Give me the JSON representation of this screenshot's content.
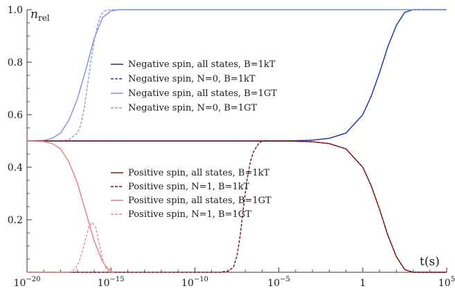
{
  "chart_data": {
    "type": "line",
    "x_scale": "log",
    "xlabel": "t(s)",
    "ylabel_main": "n",
    "ylabel_sub": "rel",
    "xlim": [
      "1e-20",
      "1e5"
    ],
    "ylim": [
      0,
      1.0
    ],
    "x_ticks": [
      {
        "exp": -20,
        "base": "10",
        "power": "−20"
      },
      {
        "exp": -15,
        "base": "10",
        "power": "−15"
      },
      {
        "exp": -10,
        "base": "10",
        "power": "−10"
      },
      {
        "exp": -5,
        "base": "10",
        "power": "−5"
      },
      {
        "exp": 0,
        "base": "1",
        "power": ""
      },
      {
        "exp": 5,
        "base": "10",
        "power": "5"
      }
    ],
    "y_ticks": [
      {
        "value": 0.2,
        "label": "0.2"
      },
      {
        "value": 0.4,
        "label": "0.4"
      },
      {
        "value": 0.6,
        "label": "0.6"
      },
      {
        "value": 0.8,
        "label": "0.8"
      },
      {
        "value": 1.0,
        "label": "1.0"
      }
    ],
    "grid": false,
    "legend_placement": "center (two groups)",
    "x_note": "x values are t(s) exponents on the printed log axis",
    "series": [
      {
        "name": "Negative spin, all states, B=1kT",
        "color": "#1f2f8a",
        "dash": false,
        "x": [
          -20,
          -6,
          -5,
          -4,
          -3,
          -2,
          -1,
          0,
          0.5,
          1,
          1.5,
          2,
          2.5,
          3,
          5
        ],
        "y": [
          0.5,
          0.5,
          0.5,
          0.501,
          0.503,
          0.51,
          0.53,
          0.6,
          0.67,
          0.76,
          0.86,
          0.94,
          0.99,
          1.0,
          1.0
        ]
      },
      {
        "name": "Negative spin, N=0, B=1kT",
        "color": "#2a3fb0",
        "dash": true,
        "x": [
          -20,
          -6,
          -5,
          -4,
          -3,
          -2,
          -1,
          0,
          0.5,
          1,
          1.5,
          2,
          2.5,
          3,
          5
        ],
        "y": [
          0.5,
          0.5,
          0.5,
          0.501,
          0.503,
          0.51,
          0.53,
          0.6,
          0.67,
          0.76,
          0.86,
          0.94,
          0.99,
          1.0,
          1.0
        ]
      },
      {
        "name": "Negative spin, all states, B=1GT",
        "color": "#7b8ee8",
        "dash": false,
        "x": [
          -20,
          -19,
          -18.5,
          -18,
          -17.5,
          -17,
          -16.5,
          -16,
          -15.5,
          -15,
          -14.5,
          5
        ],
        "y": [
          0.5,
          0.502,
          0.51,
          0.53,
          0.58,
          0.66,
          0.77,
          0.89,
          0.97,
          0.995,
          1.0,
          1.0
        ]
      },
      {
        "name": "Negative spin, N=0, B=1GT",
        "color": "#8a9cf0",
        "dash": true,
        "x": [
          -20,
          -18,
          -17.5,
          -17,
          -16.8,
          -16.6,
          -16.4,
          -16.2,
          -16,
          -15.8,
          -15.6,
          -15.4,
          -15,
          5
        ],
        "y": [
          0.5,
          0.5,
          0.505,
          0.53,
          0.56,
          0.62,
          0.71,
          0.8,
          0.88,
          0.94,
          0.98,
          0.995,
          1.0,
          1.0
        ]
      },
      {
        "name": "Positive spin, all states, B=1kT",
        "color": "#8b1a1a",
        "dash": false,
        "x": [
          -20,
          -6,
          -5,
          -4,
          -3,
          -2,
          -1,
          0,
          0.5,
          1,
          1.5,
          2,
          2.5,
          3,
          5
        ],
        "y": [
          0.5,
          0.5,
          0.5,
          0.499,
          0.497,
          0.49,
          0.47,
          0.4,
          0.33,
          0.24,
          0.14,
          0.06,
          0.01,
          0.0,
          0.0
        ]
      },
      {
        "name": "Positive spin, N=1, B=1kT",
        "color": "#7a1010",
        "dash": true,
        "x": [
          -20,
          -8.5,
          -8,
          -7.7,
          -7.5,
          -7.3,
          -7.1,
          -6.9,
          -6.7,
          -6.5,
          -6.2,
          -6,
          -5.5,
          -5,
          -4,
          -3,
          -2,
          -1,
          0,
          0.5,
          1,
          1.5,
          2,
          2.5,
          3,
          5
        ],
        "y": [
          0.0,
          0.0,
          0.005,
          0.02,
          0.06,
          0.14,
          0.25,
          0.35,
          0.42,
          0.46,
          0.49,
          0.5,
          0.5,
          0.5,
          0.499,
          0.497,
          0.49,
          0.47,
          0.4,
          0.33,
          0.24,
          0.14,
          0.06,
          0.01,
          0.0,
          0.0
        ]
      },
      {
        "name": "Positive spin, all states, B=1GT",
        "color": "#f07a7a",
        "dash": false,
        "x": [
          -20,
          -19,
          -18.5,
          -18,
          -17.5,
          -17,
          -16.5,
          -16,
          -15.5,
          -15.2,
          -15,
          -14.8
        ],
        "y": [
          0.5,
          0.498,
          0.49,
          0.47,
          0.42,
          0.34,
          0.23,
          0.12,
          0.04,
          0.015,
          0.005,
          0.0
        ]
      },
      {
        "name": "Positive spin, N=1, B=1GT",
        "color": "#f29090",
        "dash": true,
        "x": [
          -20,
          -17.5,
          -17.3,
          -17.1,
          -16.9,
          -16.7,
          -16.5,
          -16.3,
          -16.1,
          -15.9,
          -15.7,
          -15.5,
          -15.3,
          -15.1,
          -14.9
        ],
        "y": [
          0.0,
          0.0,
          0.005,
          0.015,
          0.04,
          0.08,
          0.13,
          0.175,
          0.19,
          0.17,
          0.11,
          0.05,
          0.015,
          0.003,
          0.0
        ]
      }
    ]
  }
}
